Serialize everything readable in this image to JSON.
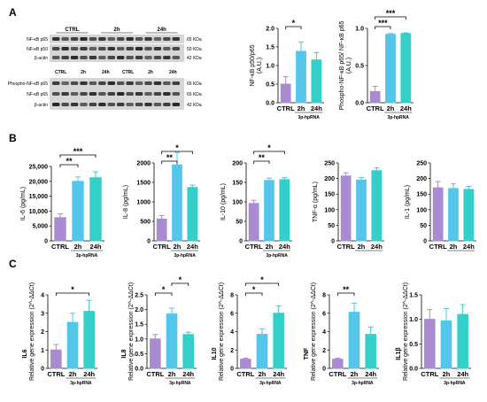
{
  "panel_labels": [
    "A",
    "B",
    "C"
  ],
  "colors": {
    "ctrl": "#a98bd1",
    "h2": "#53c6ea",
    "h24": "#33cfc8",
    "axis": "#000000"
  },
  "blots": [
    {
      "groups": [
        "CTRL",
        "2h",
        "24h"
      ],
      "rows": [
        "NF-κB p65",
        "NF-κB p50",
        "β-actin"
      ],
      "sizes": [
        "65 KDa",
        "50 KDa",
        "42 KDa"
      ]
    },
    {
      "groups": [
        "CTRL",
        "2h",
        "24h",
        "CTRL",
        "2h",
        "24h"
      ],
      "rows": [
        "Phospho-NF-κB p65",
        "NF-κB p65",
        "β-actin"
      ],
      "sizes": [
        "65 KDa",
        "65 KDa",
        "42 KDa"
      ]
    }
  ],
  "chart_data": [
    {
      "id": "A1",
      "type": "bar",
      "categories": [
        "CTRL",
        "2h",
        "24h"
      ],
      "group_label": "3p-hpRNA",
      "ylabel": "NF-κB p50/p65\n(A.U.)",
      "ylim": [
        0,
        2.0
      ],
      "yticks": [
        "0.0",
        "0.5",
        "1.0",
        "1.5",
        "2.0"
      ],
      "values": [
        0.5,
        1.38,
        1.15
      ],
      "errors": [
        0.2,
        0.25,
        0.2
      ],
      "significance": [
        {
          "from": 0,
          "to": 1,
          "label": "*"
        }
      ]
    },
    {
      "id": "A2",
      "type": "bar",
      "categories": [
        "CTRL",
        "2h",
        "24h"
      ],
      "group_label": "3p-hpRNA",
      "ylabel": "Phospho-NF-κB p65/ NF-κB p65\n(A.U.)",
      "ylim": [
        0,
        1.0
      ],
      "yticks": [
        "0.0",
        "0.5",
        "1.0"
      ],
      "values": [
        0.15,
        0.92,
        0.93
      ],
      "errors": [
        0.07,
        0.01,
        0.01
      ],
      "significance": [
        {
          "from": 0,
          "to": 1,
          "label": "***"
        },
        {
          "from": 0,
          "to": 2,
          "label": "***"
        }
      ]
    },
    {
      "id": "B1",
      "type": "bar",
      "categories": [
        "CTRL",
        "2h",
        "24h"
      ],
      "group_label": "3p-hpRNA",
      "ylabel": "IL-6 (pg/mL)",
      "ylim": [
        0,
        25000
      ],
      "yticks": [
        "0",
        "5,000",
        "10,000",
        "15,000",
        "20,000",
        "25,000"
      ],
      "values": [
        7800,
        20000,
        21200
      ],
      "errors": [
        1300,
        1500,
        2000
      ],
      "significance": [
        {
          "from": 0,
          "to": 1,
          "label": "**"
        },
        {
          "from": 0,
          "to": 2,
          "label": "***"
        }
      ]
    },
    {
      "id": "B2",
      "type": "bar",
      "categories": [
        "CTRL",
        "2h",
        "24h"
      ],
      "group_label": "3p-hpRNA",
      "ylabel": "IL-8 (pg/mL)",
      "ylim": [
        0,
        2000
      ],
      "yticks": [
        "0",
        "500",
        "1000",
        "1500",
        "2000"
      ],
      "values": [
        560,
        1950,
        1370
      ],
      "errors": [
        90,
        320,
        60
      ],
      "significance": [
        {
          "from": 0,
          "to": 1,
          "label": "**"
        },
        {
          "from": 0,
          "to": 2,
          "label": "*"
        }
      ]
    },
    {
      "id": "B3",
      "type": "bar",
      "categories": [
        "CTRL",
        "2h",
        "24h"
      ],
      "group_label": "3p-hpRNA",
      "ylabel": "IL-10 (pg/mL)",
      "ylim": [
        0,
        200
      ],
      "yticks": [
        "0",
        "50",
        "100",
        "150",
        "200"
      ],
      "values": [
        96,
        155,
        157
      ],
      "errors": [
        8,
        6,
        5
      ],
      "significance": [
        {
          "from": 0,
          "to": 1,
          "label": "**"
        },
        {
          "from": 0,
          "to": 2,
          "label": "*"
        }
      ]
    },
    {
      "id": "B4",
      "type": "bar",
      "categories": [
        "CTRL",
        "2h",
        "24h"
      ],
      "group_label": "",
      "ylabel": "TNF-α (pg/mL)",
      "ylim": [
        0,
        250
      ],
      "yticks": [
        "0",
        "50",
        "100",
        "150",
        "200",
        "250"
      ],
      "values": [
        208,
        195,
        225
      ],
      "errors": [
        10,
        8,
        9
      ],
      "significance": []
    },
    {
      "id": "B5",
      "type": "bar",
      "categories": [
        "CTRL",
        "2h",
        "24h"
      ],
      "group_label": "",
      "ylabel": "IL-1 (pg/mL)",
      "ylim": [
        0,
        250
      ],
      "yticks": [
        "0",
        "50",
        "100",
        "150",
        "200",
        "250"
      ],
      "values": [
        170,
        168,
        165
      ],
      "errors": [
        20,
        15,
        10
      ],
      "significance": []
    },
    {
      "id": "C1",
      "type": "bar",
      "categories": [
        "CTRL",
        "2h",
        "24h"
      ],
      "group_label": "3p-hpRNA",
      "ylabel": "Relative gene expression (2^-ΔΔCt)",
      "gene": "IL6",
      "ylim": [
        0,
        4
      ],
      "yticks": [
        "0",
        "1",
        "2",
        "3",
        "4"
      ],
      "values": [
        1.0,
        2.5,
        3.1
      ],
      "errors": [
        0.3,
        0.5,
        0.6
      ],
      "significance": [
        {
          "from": 0,
          "to": 2,
          "label": "*"
        }
      ]
    },
    {
      "id": "C2",
      "type": "bar",
      "categories": [
        "CTRL",
        "2h",
        "24h"
      ],
      "group_label": "3p-hpRNA",
      "ylabel": "Relative gene expression (2^-ΔΔCt)",
      "gene": "IL8",
      "ylim": [
        0,
        2.5
      ],
      "yticks": [
        "0.0",
        "0.5",
        "1.0",
        "1.5",
        "2.0",
        "2.5"
      ],
      "values": [
        1.0,
        1.85,
        1.15
      ],
      "errors": [
        0.15,
        0.2,
        0.08
      ],
      "significance": [
        {
          "from": 0,
          "to": 1,
          "label": "*"
        },
        {
          "from": 1,
          "to": 2,
          "label": "*"
        }
      ]
    },
    {
      "id": "C3",
      "type": "bar",
      "categories": [
        "CTRL",
        "2h",
        "24h"
      ],
      "group_label": "3p-hpRNA",
      "ylabel": "Relative gene expression (2^-ΔΔCt)",
      "gene": "IL10",
      "ylim": [
        0,
        8
      ],
      "yticks": [
        "0",
        "2",
        "4",
        "6",
        "8"
      ],
      "values": [
        1.0,
        3.7,
        6.0
      ],
      "errors": [
        0.1,
        0.6,
        0.8
      ],
      "significance": [
        {
          "from": 0,
          "to": 1,
          "label": "*"
        },
        {
          "from": 0,
          "to": 2,
          "label": "*"
        }
      ]
    },
    {
      "id": "C4",
      "type": "bar",
      "categories": [
        "CTRL",
        "2h",
        "24h"
      ],
      "group_label": "3p-hpRNA",
      "ylabel": "Relative gene expression (2^-ΔΔCt)",
      "gene": "TNF",
      "ylim": [
        0,
        8
      ],
      "yticks": [
        "0",
        "2",
        "4",
        "6",
        "8"
      ],
      "values": [
        1.0,
        6.1,
        3.7
      ],
      "errors": [
        0.1,
        1.0,
        0.8
      ],
      "significance": [
        {
          "from": 0,
          "to": 1,
          "label": "**"
        }
      ]
    },
    {
      "id": "C5",
      "type": "bar",
      "categories": [
        "CTRL",
        "2h",
        "24h"
      ],
      "group_label": "3p-hpRNA",
      "ylabel": "Relative gene expression (2^-ΔΔCt)",
      "gene": "IL1β",
      "ylim": [
        0,
        1.5
      ],
      "yticks": [
        "0.0",
        "0.5",
        "1.0",
        "1.5"
      ],
      "values": [
        1.0,
        0.97,
        1.1
      ],
      "errors": [
        0.2,
        0.25,
        0.2
      ],
      "significance": []
    }
  ]
}
